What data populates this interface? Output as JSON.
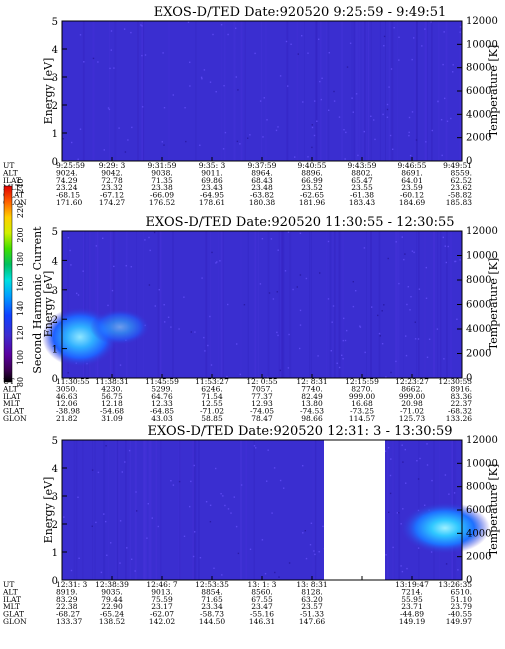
{
  "chart_data": [
    {
      "type": "heatmap",
      "title": "EXOS-D/TED   Date:920520  9:25:59 - 9:49:51",
      "ylabel": "Energy [eV]",
      "y2label": "Temperature [K]",
      "ylim": [
        0,
        5
      ],
      "y2lim": [
        0,
        12000
      ],
      "yticks": [
        "0",
        "1",
        "2",
        "3",
        "4",
        "5"
      ],
      "y2ticks": [
        "0",
        "2000",
        "4000",
        "6000",
        "8000",
        "10000",
        "12000"
      ],
      "colorscale": "blue-dominant",
      "table": {
        "rows": [
          "UT",
          "ALT",
          "ILAT",
          "MLT",
          "GLAT",
          "GLON"
        ],
        "cols": [
          [
            "9:25:59",
            "9024.",
            "74.29",
            "23.24",
            "-68.15",
            "171.60"
          ],
          [
            "9:29: 3",
            "9042.",
            "72.78",
            "23.32",
            "-67.12",
            "174.27"
          ],
          [
            "9:31:59",
            "9038.",
            "71.35",
            "23.38",
            "-66.09",
            "176.52"
          ],
          [
            "9:35: 3",
            "9011.",
            "69.86",
            "23.43",
            "-64.95",
            "178.61"
          ],
          [
            "9:37:59",
            "8964.",
            "68.43",
            "23.48",
            "-63.82",
            "180.38"
          ],
          [
            "9:40:55",
            "8896.",
            "66.99",
            "23.52",
            "-62.65",
            "181.96"
          ],
          [
            "9:43:59",
            "8802.",
            "65.47",
            "23.55",
            "-61.38",
            "183.43"
          ],
          [
            "9:46:55",
            "8691.",
            "64.01",
            "23.59",
            "-60.12",
            "184.69"
          ],
          [
            "9:49:51",
            "8559.",
            "62.52",
            "23.62",
            "-58.82",
            "185.83"
          ]
        ]
      }
    },
    {
      "type": "heatmap",
      "title": "EXOS-D/TED   Date:920520  11:30:55 - 12:30:55",
      "ylabel": "Energy [eV]",
      "y2label": "Temperature [K]",
      "ylim": [
        0,
        5
      ],
      "y2lim": [
        0,
        12000
      ],
      "yticks": [
        "0",
        "1",
        "2",
        "3",
        "4",
        "5"
      ],
      "y2ticks": [
        "0",
        "2000",
        "4000",
        "6000",
        "8000",
        "10000",
        "12000"
      ],
      "colorscale": "blue-dominant",
      "features": "enhanced intensity near 0.5-2 eV between 11:30:55 and 11:45:59",
      "table": {
        "rows": [
          "UT",
          "ALT",
          "ILAT",
          "MLT",
          "GLAT",
          "GLON"
        ],
        "cols": [
          [
            "11:30:55",
            "3050.",
            "46.63",
            "12.06",
            "-38.98",
            "21.82"
          ],
          [
            "11:38:31",
            "4230.",
            "56.75",
            "12.18",
            "-54.68",
            "31.09"
          ],
          [
            "11:45:59",
            "5299.",
            "64.76",
            "12.33",
            "-64.85",
            "43.03"
          ],
          [
            "11:53:27",
            "6246.",
            "71.54",
            "12.55",
            "-71.02",
            "58.85"
          ],
          [
            "12: 0:55",
            "7057.",
            "77.37",
            "12.93",
            "-74.05",
            "78.47"
          ],
          [
            "12: 8:31",
            "7740.",
            "82.49",
            "13.80",
            "-74.53",
            "98.66"
          ],
          [
            "12:15:59",
            "8270.",
            "999.00",
            "16.68",
            "-73.25",
            "114.57"
          ],
          [
            "12:23:27",
            "8662.",
            "999.00",
            "20.98",
            "-71.02",
            "125.73"
          ],
          [
            "12:30:55",
            "8916.",
            "83.36",
            "22.37",
            "-68.32",
            "133.26"
          ]
        ]
      }
    },
    {
      "type": "heatmap",
      "title": "EXOS-D/TED   Date:920520  12:31: 3 - 13:30:59",
      "ylabel": "Energy [eV]",
      "y2label": "Temperature [K]",
      "ylim": [
        0,
        5
      ],
      "y2lim": [
        0,
        12000
      ],
      "yticks": [
        "0",
        "1",
        "2",
        "3",
        "4",
        "5"
      ],
      "y2ticks": [
        "0",
        "2000",
        "4000",
        "6000",
        "8000",
        "10000",
        "12000"
      ],
      "colorscale": "blue-dominant",
      "features": "data gap between ~13:10 and ~13:19; enhanced intensity near 1.5-3 eV after 13:24",
      "table": {
        "rows": [
          "UT",
          "ALT",
          "ILAT",
          "MLT",
          "GLAT",
          "GLON"
        ],
        "cols": [
          [
            "12:31: 3",
            "8919.",
            "83.29",
            "22.38",
            "-68.27",
            "133.37"
          ],
          [
            "12:38:39",
            "9035.",
            "79.44",
            "22.90",
            "-65.24",
            "138.52"
          ],
          [
            "12:46: 7",
            "9013.",
            "75.59",
            "23.17",
            "-62.07",
            "142.02"
          ],
          [
            "12:53:35",
            "8854.",
            "71.65",
            "23.34",
            "-58.73",
            "144.50"
          ],
          [
            "13: 1: 3",
            "8560.",
            "67.55",
            "23.47",
            "-55.16",
            "146.31"
          ],
          [
            "13: 8:31",
            "8128.",
            "63.20",
            "23.57",
            "-51.33",
            "147.66"
          ],
          [
            "",
            "",
            "",
            "",
            "",
            ""
          ],
          [
            "13:19:47",
            "7214.",
            "55.95",
            "23.71",
            "-44.89",
            "149.19"
          ],
          [
            "13:26:35",
            "6510.",
            "51.10",
            "23.79",
            "-40.55",
            "149.97"
          ]
        ]
      }
    }
  ],
  "colorbar": {
    "label": "Second Harmonic Current",
    "ticks": [
      "80",
      "100",
      "120",
      "140",
      "160",
      "180",
      "200",
      "220",
      "240"
    ]
  }
}
